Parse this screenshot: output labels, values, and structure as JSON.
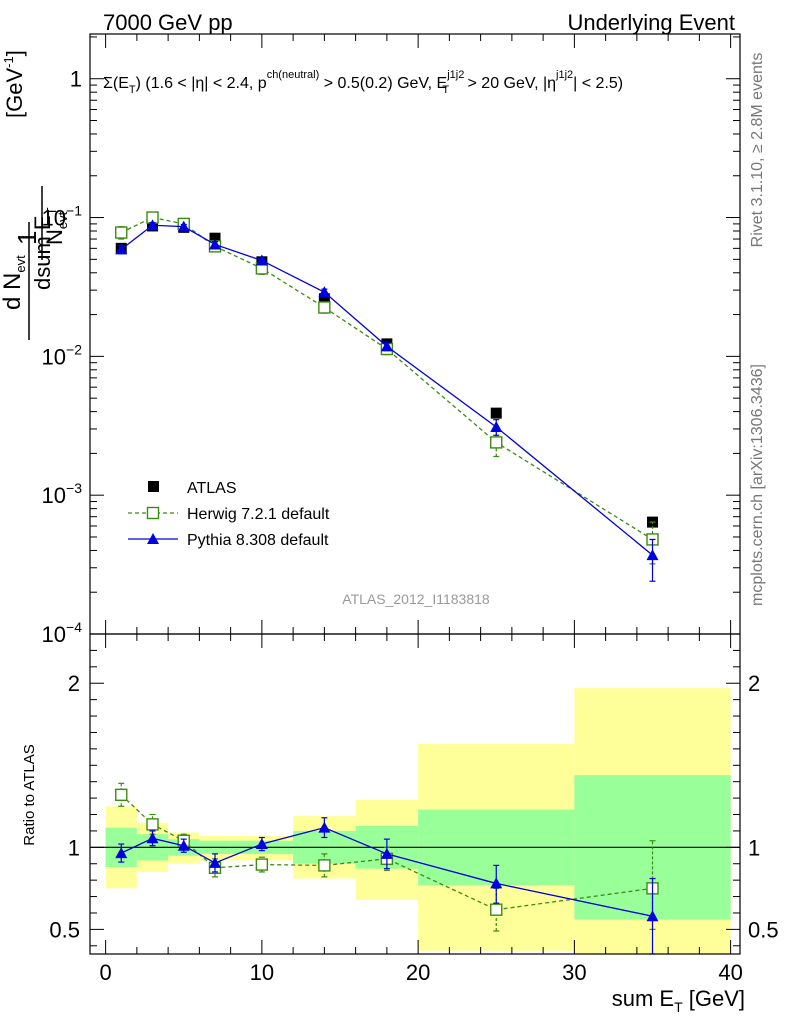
{
  "header": {
    "left": "7000 GeV pp",
    "right": "Underlying Event"
  },
  "side": {
    "rivet": "Rivet 3.1.10, ≥ 2.8M events",
    "mcplots": "mcplots.cern.ch [arXiv:1306.3436]"
  },
  "colors": {
    "atlas": "#000000",
    "herwig": "#3a8c10",
    "pythia": "#0000e0",
    "band_inner": "#99ff99",
    "band_outer": "#ffff99"
  },
  "chart_data": [
    {
      "panel": "main",
      "type": "scatter",
      "title": "Σ(E_T) (1.6 < |η| < 2.4, p^ch(neutral) > 0.5(0.2) GeV, E_T^j1j2 > 20 GeV, |η^j1j2| < 2.5)",
      "ylabel": "1/N_evt dN_evt/dsum E_T [GeV^-1]",
      "yscale": "log",
      "xlim": [
        -1,
        40.6
      ],
      "ylim": [
        0.0001,
        2.1
      ],
      "yticks": [
        {
          "value": 1,
          "label": "1"
        },
        {
          "value": 0.1,
          "label": "10^-1"
        },
        {
          "value": 0.01,
          "label": "10^-2"
        },
        {
          "value": 0.001,
          "label": "10^-3"
        },
        {
          "value": 0.0001,
          "label": "10^-4"
        }
      ],
      "watermark": "ATLAS_2012_I1183818",
      "legend_position": "lower-left",
      "series": [
        {
          "name": "ATLAS",
          "marker": "filled-square",
          "x": [
            1,
            3,
            5,
            7,
            10,
            14,
            18,
            25,
            35
          ],
          "y": [
            0.06,
            0.087,
            0.085,
            0.071,
            0.048,
            0.026,
            0.0123,
            0.0039,
            0.00064
          ]
        },
        {
          "name": "Herwig 7.2.1 default",
          "marker": "open-square",
          "line": "dashed",
          "x": [
            1,
            3,
            5,
            7,
            10,
            14,
            18,
            25,
            35
          ],
          "y": [
            0.078,
            0.1,
            0.09,
            0.062,
            0.043,
            0.0225,
            0.0113,
            0.0024,
            0.00048
          ],
          "err_low": [
            0.07,
            0.092,
            0.085,
            0.058,
            0.039,
            0.0205,
            0.0103,
            0.0019,
            0.00032
          ],
          "err_high": [
            0.086,
            0.108,
            0.095,
            0.066,
            0.047,
            0.0245,
            0.0123,
            0.0029,
            0.00064
          ]
        },
        {
          "name": "Pythia 8.308 default",
          "marker": "filled-triangle",
          "line": "solid",
          "x": [
            1,
            3,
            5,
            7,
            10,
            14,
            18,
            25,
            35
          ],
          "y": [
            0.059,
            0.088,
            0.086,
            0.064,
            0.049,
            0.029,
            0.0118,
            0.0031,
            0.00037
          ],
          "err_low": [
            0.055,
            0.084,
            0.083,
            0.061,
            0.047,
            0.0275,
            0.0111,
            0.0027,
            0.00024
          ],
          "err_high": [
            0.063,
            0.092,
            0.089,
            0.067,
            0.051,
            0.0305,
            0.0125,
            0.0035,
            0.00048
          ]
        }
      ]
    },
    {
      "panel": "ratio",
      "type": "scatter",
      "xlabel": "sum E_T [GeV]",
      "ylabel": "Ratio to ATLAS",
      "xlim": [
        -1,
        40.6
      ],
      "ylim": [
        0.35,
        2.3
      ],
      "xticks": [
        0,
        10,
        20,
        30,
        40
      ],
      "yticks": [
        0.5,
        1,
        2
      ],
      "bands": [
        {
          "x0": 0,
          "x1": 2,
          "inner": [
            0.88,
            1.12
          ],
          "outer": [
            0.75,
            1.25
          ]
        },
        {
          "x0": 2,
          "x1": 4,
          "inner": [
            0.92,
            1.08
          ],
          "outer": [
            0.85,
            1.15
          ]
        },
        {
          "x0": 4,
          "x1": 6,
          "inner": [
            0.95,
            1.05
          ],
          "outer": [
            0.9,
            1.09
          ]
        },
        {
          "x0": 6,
          "x1": 8,
          "inner": [
            0.96,
            1.04
          ],
          "outer": [
            0.92,
            1.07
          ]
        },
        {
          "x0": 8,
          "x1": 12,
          "inner": [
            0.96,
            1.04
          ],
          "outer": [
            0.92,
            1.07
          ]
        },
        {
          "x0": 12,
          "x1": 16,
          "inner": [
            0.9,
            1.1
          ],
          "outer": [
            0.81,
            1.19
          ]
        },
        {
          "x0": 16,
          "x1": 20,
          "inner": [
            0.87,
            1.13
          ],
          "outer": [
            0.68,
            1.29
          ]
        },
        {
          "x0": 20,
          "x1": 30,
          "inner": [
            0.77,
            1.23
          ],
          "outer": [
            0.37,
            1.63
          ]
        },
        {
          "x0": 30,
          "x1": 40,
          "inner": [
            0.56,
            1.44
          ],
          "outer": [
            0.35,
            1.97
          ]
        }
      ],
      "series": [
        {
          "name": "Herwig 7.2.1 default",
          "x": [
            1,
            3,
            5,
            7,
            10,
            14,
            18,
            25,
            35
          ],
          "y": [
            1.32,
            1.14,
            1.04,
            0.875,
            0.895,
            0.89,
            0.93,
            0.62,
            0.75
          ],
          "err_low": [
            1.25,
            1.08,
            1.0,
            0.82,
            0.85,
            0.82,
            0.86,
            0.49,
            0.5
          ],
          "err_high": [
            1.39,
            1.2,
            1.08,
            0.93,
            0.94,
            0.96,
            1.0,
            0.75,
            1.04
          ]
        },
        {
          "name": "Pythia 8.308 default",
          "x": [
            1,
            3,
            5,
            7,
            10,
            14,
            18,
            25,
            35
          ],
          "y": [
            0.965,
            1.055,
            1.01,
            0.905,
            1.02,
            1.12,
            0.96,
            0.78,
            0.58
          ],
          "err_low": [
            0.91,
            1.01,
            0.97,
            0.85,
            0.98,
            1.06,
            0.87,
            0.66,
            0.35
          ],
          "err_high": [
            1.02,
            1.1,
            1.05,
            0.96,
            1.06,
            1.18,
            1.05,
            0.89,
            0.81
          ]
        }
      ]
    }
  ]
}
